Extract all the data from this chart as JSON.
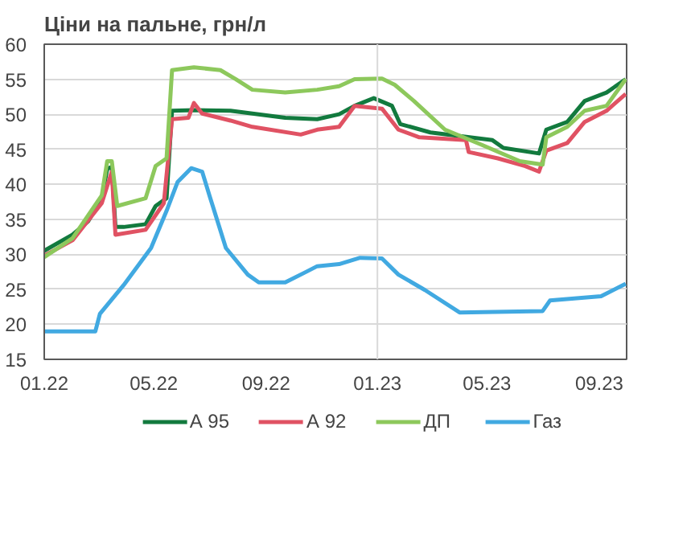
{
  "chart_data": {
    "type": "line",
    "title": "Ціни на пальне, грн/л",
    "xlim": [
      "2022-01-01",
      "2023-10-01"
    ],
    "ylim": [
      15,
      60
    ],
    "yticks": [
      15,
      20,
      25,
      30,
      35,
      40,
      45,
      50,
      55,
      60
    ],
    "xticks": [
      {
        "value": "2022-01-01",
        "label": "01.22"
      },
      {
        "value": "2022-05-01",
        "label": "05.22"
      },
      {
        "value": "2022-09-01",
        "label": "09.22"
      },
      {
        "value": "2023-01-01",
        "label": "01.23"
      },
      {
        "value": "2023-05-01",
        "label": "05.23"
      },
      {
        "value": "2023-09-01",
        "label": "09.23"
      }
    ],
    "grid": "y",
    "legend": "bottom",
    "ref_lines": [
      {
        "axis": "x",
        "value": "2023-01-01",
        "label": null,
        "color": "#d9d9d9"
      }
    ],
    "series": [
      {
        "name": "А 95",
        "color": "#127a3e",
        "x": [
          "2022-01-01",
          "2022-02-01",
          "2022-02-18",
          "2022-03-05",
          "2022-03-11",
          "2022-03-16",
          "2022-03-20",
          "2022-03-29",
          "2022-04-22",
          "2022-05-03",
          "2022-05-15",
          "2022-05-21",
          "2022-06-14",
          "2022-07-24",
          "2022-09-22",
          "2022-10-27",
          "2022-11-20",
          "2022-12-07",
          "2022-12-28",
          "2023-01-17",
          "2023-01-26",
          "2023-02-28",
          "2023-05-07",
          "2023-05-19",
          "2023-06-27",
          "2023-07-05",
          "2023-07-28",
          "2023-08-16",
          "2023-09-09",
          "2023-09-30"
        ],
        "values": [
          30.5,
          32.8,
          34.7,
          38.0,
          42.2,
          42.5,
          33.9,
          33.9,
          34.3,
          36.9,
          38.0,
          50.5,
          50.6,
          50.5,
          49.5,
          49.3,
          50.0,
          51.2,
          52.3,
          51.2,
          48.6,
          47.4,
          46.3,
          45.2,
          44.4,
          47.8,
          48.9,
          51.9,
          53.1,
          55.0
        ]
      },
      {
        "name": "А 92",
        "color": "#e05263",
        "x": [
          "2022-01-01",
          "2022-02-01",
          "2022-03-05",
          "2022-03-16",
          "2022-03-20",
          "2022-04-22",
          "2022-05-12",
          "2022-05-21",
          "2022-06-08",
          "2022-06-14",
          "2022-06-23",
          "2022-07-24",
          "2022-08-17",
          "2022-10-09",
          "2022-10-27",
          "2022-11-20",
          "2022-12-07",
          "2023-01-06",
          "2023-01-24",
          "2023-02-16",
          "2023-04-08",
          "2023-04-11",
          "2023-05-13",
          "2023-06-12",
          "2023-06-27",
          "2023-07-05",
          "2023-07-28",
          "2023-08-16",
          "2023-09-09",
          "2023-09-30"
        ],
        "values": [
          29.8,
          32.0,
          37.3,
          41.8,
          32.8,
          33.5,
          37.3,
          49.3,
          49.5,
          51.6,
          50.1,
          49.1,
          48.2,
          47.1,
          47.8,
          48.2,
          51.2,
          50.8,
          47.8,
          46.7,
          46.3,
          44.6,
          43.7,
          42.6,
          41.8,
          44.8,
          45.9,
          48.9,
          50.5,
          52.9
        ]
      },
      {
        "name": "ДП",
        "color": "#8dc85c",
        "x": [
          "2022-01-01",
          "2022-02-01",
          "2022-03-05",
          "2022-03-11",
          "2022-03-16",
          "2022-03-22",
          "2022-04-22",
          "2022-05-03",
          "2022-05-15",
          "2022-05-21",
          "2022-06-14",
          "2022-07-13",
          "2022-07-30",
          "2022-08-17",
          "2022-09-22",
          "2022-10-27",
          "2022-11-20",
          "2022-12-07",
          "2023-01-06",
          "2023-01-20",
          "2023-02-10",
          "2023-03-16",
          "2023-04-26",
          "2023-06-06",
          "2023-07-01",
          "2023-07-05",
          "2023-07-28",
          "2023-08-16",
          "2023-09-09",
          "2023-09-30"
        ],
        "values": [
          29.6,
          32.3,
          38.4,
          43.3,
          43.3,
          36.9,
          38.0,
          42.6,
          43.7,
          56.3,
          56.7,
          56.3,
          55.0,
          53.5,
          53.1,
          53.5,
          54.0,
          55.0,
          55.1,
          54.2,
          51.9,
          47.8,
          45.6,
          43.3,
          42.8,
          46.7,
          48.2,
          50.5,
          51.2,
          55.0
        ]
      },
      {
        "name": "Газ",
        "color": "#41a9e1",
        "x": [
          "2022-01-01",
          "2022-02-26",
          "2022-03-03",
          "2022-03-29",
          "2022-04-28",
          "2022-05-15",
          "2022-05-27",
          "2022-06-11",
          "2022-06-23",
          "2022-07-01",
          "2022-07-19",
          "2022-08-12",
          "2022-08-24",
          "2022-09-22",
          "2022-10-15",
          "2022-10-27",
          "2022-11-20",
          "2022-12-13",
          "2023-01-06",
          "2023-01-24",
          "2023-02-22",
          "2023-04-01",
          "2023-07-01",
          "2023-07-09",
          "2023-09-03",
          "2023-09-30"
        ],
        "values": [
          19.0,
          19.0,
          21.5,
          25.6,
          30.9,
          36.2,
          40.3,
          42.3,
          41.8,
          38.4,
          30.9,
          27.1,
          26.0,
          26.0,
          27.5,
          28.3,
          28.6,
          29.5,
          29.4,
          27.1,
          24.9,
          21.7,
          21.9,
          23.4,
          24.0,
          25.8
        ]
      }
    ]
  }
}
